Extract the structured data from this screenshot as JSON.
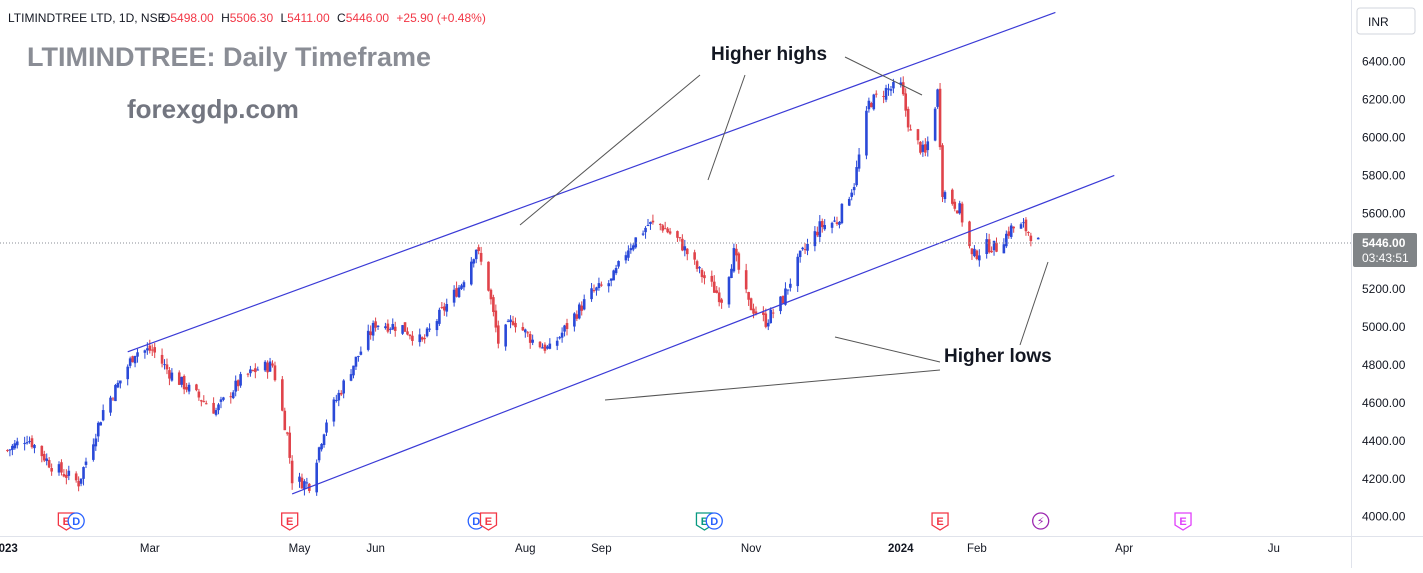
{
  "header": {
    "symbol_line": "LTIMINDTREE LTD, 1D, NSE",
    "open_label": "O",
    "open": "5498.00",
    "high_label": "H",
    "high": "5506.30",
    "low_label": "L",
    "low": "5411.00",
    "close_label": "C",
    "close": "5446.00",
    "change": "+25.90 (+0.48%)"
  },
  "overlay": {
    "title": "LTIMINDTREE: Daily Timeframe",
    "website": "forexgdp.com",
    "annotation_highs": "Higher highs",
    "annotation_lows": "Higher lows"
  },
  "price_scale": {
    "currency": "INR",
    "last_price": "5446.00",
    "countdown": "03:43:51"
  },
  "colors": {
    "up": "#2a49d8",
    "down": "#e0434a",
    "channel": "#3a3ad6",
    "annotation_line": "#555555",
    "price_label_bg": "#808487"
  },
  "events": [
    {
      "type": "E",
      "color": "#f23645",
      "month": "2023-01-26"
    },
    {
      "type": "D",
      "color": "#2962ff",
      "month": "2023-01-30"
    },
    {
      "type": "E",
      "color": "#f23645",
      "month": "2023-04-27"
    },
    {
      "type": "D",
      "color": "#2962ff",
      "month": "2023-07-12"
    },
    {
      "type": "E",
      "color": "#f23645",
      "month": "2023-07-17"
    },
    {
      "type": "E",
      "color": "#089981",
      "month": "2023-10-13"
    },
    {
      "type": "D",
      "color": "#2962ff",
      "month": "2023-10-17"
    },
    {
      "type": "E",
      "color": "#f23645",
      "month": "2024-01-17"
    },
    {
      "type": "⚡",
      "color": "#9c27b0",
      "month": "2024-02-27"
    },
    {
      "type": "E",
      "color": "#e040fb",
      "month": "2024-04-25"
    }
  ],
  "chart_data": {
    "type": "candlestick",
    "y_unit": "INR",
    "ylim": [
      3930,
      6620
    ],
    "y_ticks": [
      "4000.00",
      "4200.00",
      "4400.00",
      "4600.00",
      "4800.00",
      "5000.00",
      "5200.00",
      "5400.00",
      "5600.00",
      "5800.00",
      "6000.00",
      "6200.00",
      "6400.00"
    ],
    "x_ticks": [
      "2023",
      "Mar",
      "May",
      "Jun",
      "Aug",
      "Sep",
      "Nov",
      "2024",
      "Feb",
      "Apr",
      "Ju"
    ],
    "grid": false,
    "channel_upper": [
      [
        "2023-02-20",
        4870
      ],
      [
        "2024-03-04",
        6660
      ]
    ],
    "channel_lower": [
      [
        "2023-04-28",
        4120
      ],
      [
        "2024-03-28",
        5800
      ]
    ],
    "current_price": 5446,
    "price_path": [
      [
        "2023-01-02",
        4350
      ],
      [
        "2023-01-10",
        4420
      ],
      [
        "2023-01-20",
        4270
      ],
      [
        "2023-01-31",
        4180
      ],
      [
        "2023-02-10",
        4560
      ],
      [
        "2023-02-17",
        4720
      ],
      [
        "2023-02-23",
        4870
      ],
      [
        "2023-03-02",
        4880
      ],
      [
        "2023-03-09",
        4760
      ],
      [
        "2023-03-20",
        4640
      ],
      [
        "2023-03-28",
        4560
      ],
      [
        "2023-04-07",
        4720
      ],
      [
        "2023-04-14",
        4780
      ],
      [
        "2023-04-20",
        4800
      ],
      [
        "2023-04-26",
        4430
      ],
      [
        "2023-04-28",
        4200
      ],
      [
        "2023-05-05",
        4170
      ],
      [
        "2023-05-12",
        4510
      ],
      [
        "2023-05-22",
        4780
      ],
      [
        "2023-06-01",
        5020
      ],
      [
        "2023-06-12",
        5000
      ],
      [
        "2023-06-20",
        4920
      ],
      [
        "2023-06-28",
        5080
      ],
      [
        "2023-07-06",
        5230
      ],
      [
        "2023-07-12",
        5420
      ],
      [
        "2023-07-17",
        5210
      ],
      [
        "2023-07-21",
        4920
      ],
      [
        "2023-07-27",
        5040
      ],
      [
        "2023-08-04",
        4930
      ],
      [
        "2023-08-11",
        4880
      ],
      [
        "2023-08-21",
        5060
      ],
      [
        "2023-08-28",
        5180
      ],
      [
        "2023-09-05",
        5240
      ],
      [
        "2023-09-12",
        5420
      ],
      [
        "2023-09-20",
        5540
      ],
      [
        "2023-09-25",
        5540
      ],
      [
        "2023-10-03",
        5450
      ],
      [
        "2023-10-11",
        5290
      ],
      [
        "2023-10-17",
        5200
      ],
      [
        "2023-10-20",
        5150
      ],
      [
        "2023-10-25",
        5390
      ],
      [
        "2023-10-31",
        5120
      ],
      [
        "2023-11-07",
        5030
      ],
      [
        "2023-11-14",
        5150
      ],
      [
        "2023-11-21",
        5370
      ],
      [
        "2023-11-29",
        5530
      ],
      [
        "2023-12-06",
        5560
      ],
      [
        "2023-12-13",
        5760
      ],
      [
        "2023-12-19",
        6180
      ],
      [
        "2023-12-26",
        6250
      ],
      [
        "2024-01-01",
        6270
      ],
      [
        "2024-01-05",
        6020
      ],
      [
        "2024-01-11",
        5910
      ],
      [
        "2024-01-16",
        6240
      ],
      [
        "2024-01-18",
        5720
      ],
      [
        "2024-01-25",
        5620
      ],
      [
        "2024-01-30",
        5370
      ],
      [
        "2024-02-05",
        5430
      ],
      [
        "2024-02-09",
        5420
      ],
      [
        "2024-02-15",
        5520
      ],
      [
        "2024-02-20",
        5530
      ],
      [
        "2024-02-26",
        5446
      ]
    ]
  }
}
